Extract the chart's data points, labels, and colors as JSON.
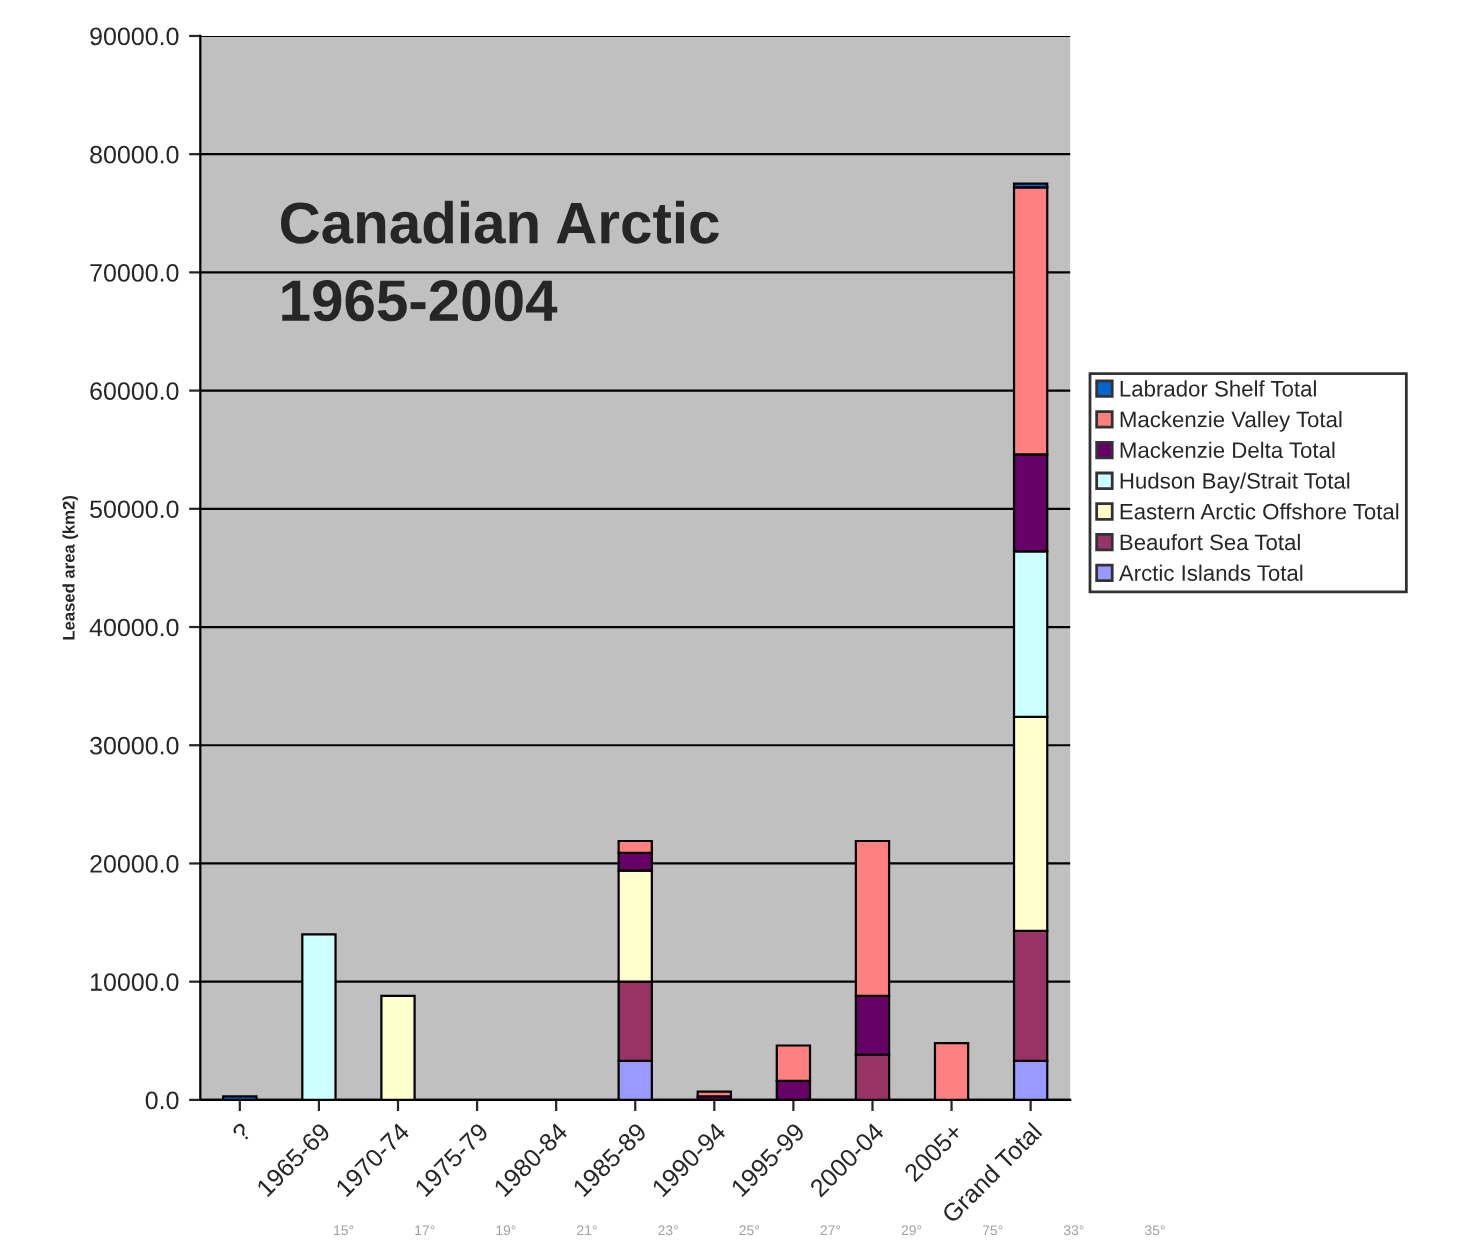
{
  "chart_data": {
    "type": "bar",
    "title": "Canadian Arctic\n1965-2004",
    "ylabel": "Leased area (km2)",
    "stacked": true,
    "categories": [
      "?",
      "1965-69",
      "1970-74",
      "1975-79",
      "1980-84",
      "1985-89",
      "1990-94",
      "1995-99",
      "2000-04",
      "2005+",
      "Grand Total"
    ],
    "series": [
      {
        "name": "Arctic Islands Total",
        "color": "#9999ff",
        "values": [
          null,
          null,
          null,
          null,
          null,
          3300,
          null,
          null,
          null,
          null,
          3300
        ]
      },
      {
        "name": "Beaufort Sea Total",
        "color": "#993366",
        "values": [
          null,
          null,
          null,
          null,
          null,
          6700,
          null,
          null,
          3800,
          null,
          11000
        ]
      },
      {
        "name": "Eastern Arctic Offshore Total",
        "color": "#ffffcc",
        "values": [
          null,
          null,
          8800,
          null,
          null,
          9400,
          null,
          null,
          null,
          null,
          18100
        ]
      },
      {
        "name": "Hudson Bay/Strait Total",
        "color": "#ccffff",
        "values": [
          null,
          14000,
          null,
          null,
          null,
          null,
          null,
          null,
          null,
          null,
          14000
        ]
      },
      {
        "name": "Mackenzie Delta Total",
        "color": "#660066",
        "values": [
          null,
          null,
          null,
          null,
          null,
          1500,
          300,
          1600,
          5000,
          null,
          8200
        ]
      },
      {
        "name": "Mackenzie Valley Total",
        "color": "#ff8080",
        "values": [
          null,
          null,
          null,
          null,
          null,
          1000,
          400,
          3000,
          13100,
          4800,
          22600
        ]
      },
      {
        "name": "Labrador Shelf Total",
        "color": "#0066cc",
        "values": [
          300,
          null,
          null,
          null,
          null,
          null,
          null,
          null,
          null,
          null,
          300
        ]
      }
    ],
    "ylim": [
      0,
      90000
    ],
    "yticks": [
      {
        "value": 0,
        "label": "0.0"
      },
      {
        "value": 10000,
        "label": "10000.0"
      },
      {
        "value": 20000,
        "label": "20000.0"
      },
      {
        "value": 30000,
        "label": "30000.0"
      },
      {
        "value": 40000,
        "label": "40000.0"
      },
      {
        "value": 50000,
        "label": "50000.0"
      },
      {
        "value": 60000,
        "label": "60000.0"
      },
      {
        "value": 70000,
        "label": "70000.0"
      },
      {
        "value": 80000,
        "label": "80000.0"
      },
      {
        "value": 90000,
        "label": "90000.0"
      }
    ],
    "grid": "y",
    "legend": "right",
    "annotations": [
      "15°",
      "17°",
      "19°",
      "21°",
      "23°",
      "25°",
      "27°",
      "29°",
      "75°",
      "33°",
      "35°"
    ]
  }
}
